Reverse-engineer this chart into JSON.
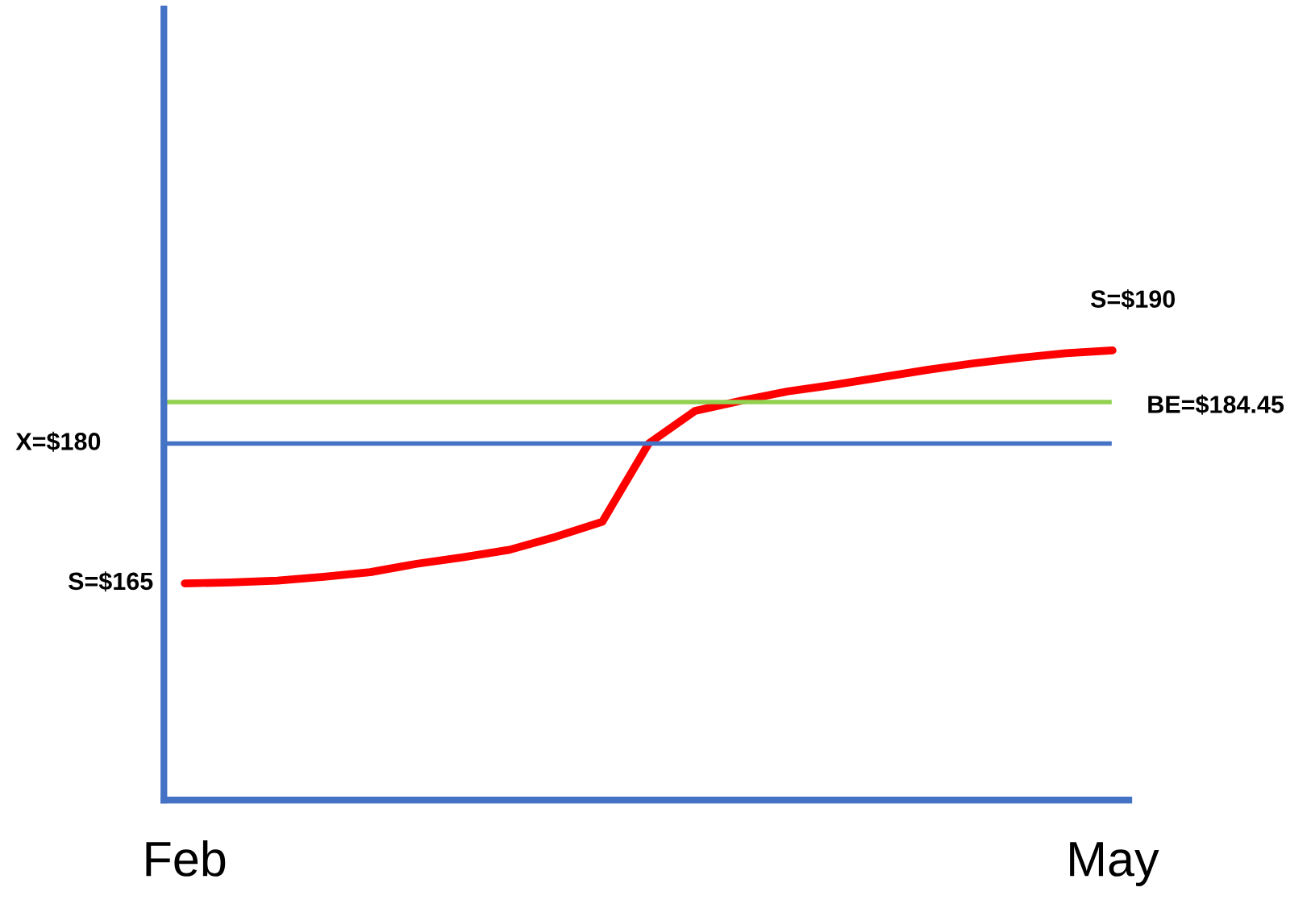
{
  "chart_data": {
    "type": "line",
    "categories": [
      "Feb",
      null,
      null,
      null,
      null,
      null,
      null,
      null,
      null,
      null,
      null,
      null,
      null,
      null,
      null,
      null,
      null,
      null,
      null,
      null,
      "May"
    ],
    "tick_labels": "x",
    "grid": false,
    "legend": false,
    "marker": "none",
    "line_style": "solid",
    "series": [
      {
        "color": "#ff0000",
        "values": [
          165,
          165.1,
          165.3,
          165.7,
          166.2,
          167.1,
          167.8,
          168.6,
          170.0,
          171.6,
          180,
          183.5,
          184.6,
          185.6,
          186.3,
          187.1,
          187.9,
          188.6,
          189.2,
          189.7,
          190
        ],
        "value_labels": [
          "S=$165",
          null,
          null,
          null,
          null,
          null,
          null,
          null,
          null,
          null,
          null,
          null,
          null,
          null,
          null,
          null,
          null,
          null,
          null,
          null,
          "S=$190"
        ]
      }
    ],
    "ref_lines": [
      {
        "axis": "y",
        "value": 180,
        "label": "X=$180",
        "color": "#4472c4"
      },
      {
        "axis": "y",
        "value": 184.45,
        "label": "BE=$184.45",
        "color": "#92d050"
      }
    ]
  }
}
